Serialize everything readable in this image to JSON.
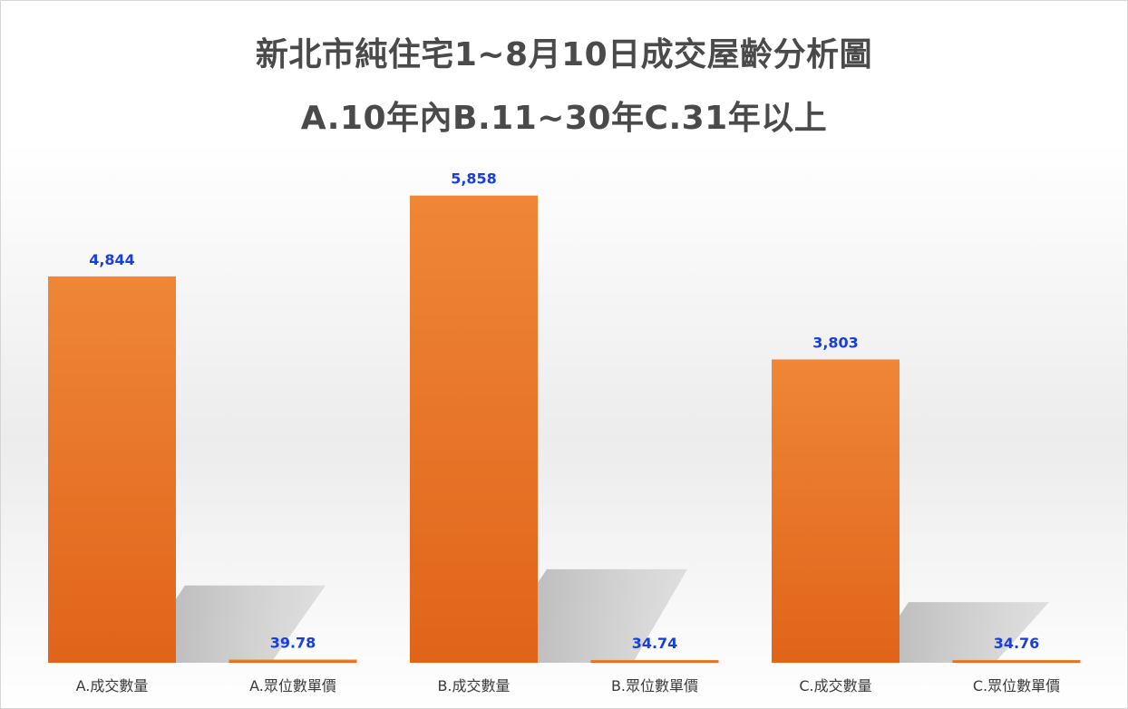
{
  "chart_data": {
    "type": "bar",
    "title": "新北市純住宅1~8月10日成交屋齡分析圖",
    "subtitle": "A.10年內B.11~30年C.31年以上",
    "categories": [
      "A.成交數量",
      "A.眾位數單價",
      "B.成交數量",
      "B.眾位數單價",
      "C.成交數量",
      "C.眾位數單價"
    ],
    "values": [
      4844,
      39.78,
      5858,
      34.74,
      3803,
      34.76
    ],
    "data_labels": [
      "4,844",
      "39.78",
      "5,858",
      "34.74",
      "3,803",
      "34.76"
    ],
    "ylim": [
      0,
      6400
    ],
    "grid": false,
    "legend": "none",
    "bar_color": "#ea7a2c",
    "label_color": "#1a3ed8"
  }
}
